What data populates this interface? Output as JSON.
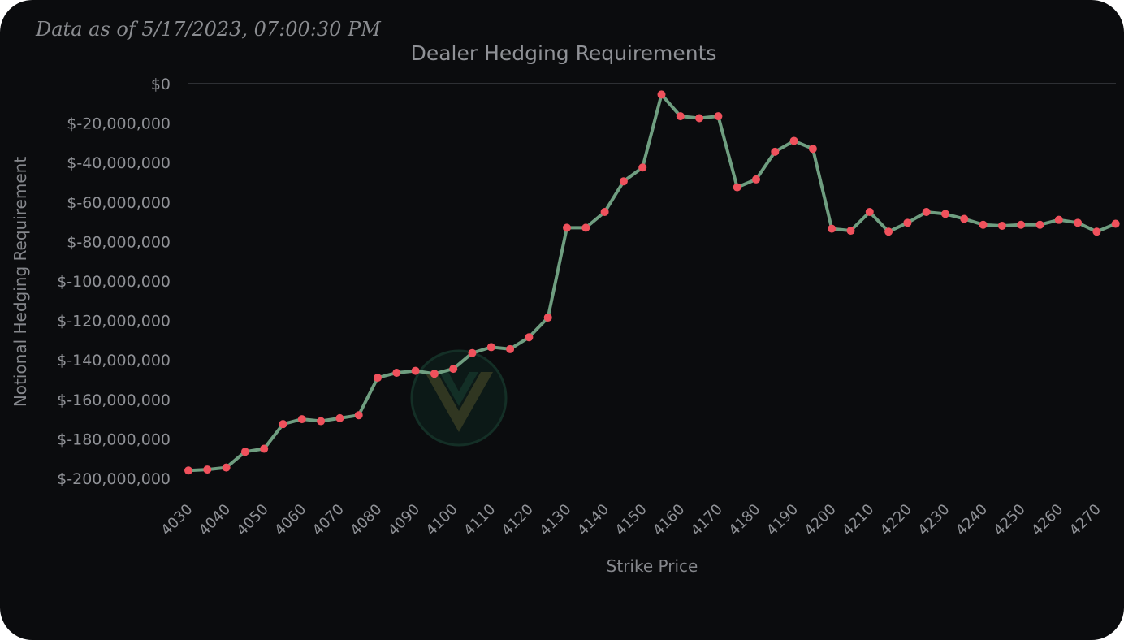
{
  "header": {
    "timestamp": "Data as of 5/17/2023, 07:00:30 PM"
  },
  "colors": {
    "background": "#0b0c0e",
    "line": "#6f9e80",
    "point": "#f0515c",
    "text": "#8f9196",
    "axis_line": "#3a3c40"
  },
  "icons": {
    "watermark": "v-logo-watermark-icon"
  },
  "chart_data": {
    "type": "line",
    "title": "Dealer Hedging Requirements",
    "xlabel": "Strike Price",
    "ylabel": "Notional Hedging Requirement",
    "ylim": [
      -200000000,
      0
    ],
    "y_ticks": [
      0,
      -20000000,
      -40000000,
      -60000000,
      -80000000,
      -100000000,
      -120000000,
      -140000000,
      -160000000,
      -180000000,
      -200000000
    ],
    "y_tick_labels": [
      "$0",
      "$-20,000,000",
      "$-40,000,000",
      "$-60,000,000",
      "$-80,000,000",
      "$-100,000,000",
      "$-120,000,000",
      "$-140,000,000",
      "$-160,000,000",
      "$-180,000,000",
      "$-200,000,000"
    ],
    "x_tick_labels": [
      "4030",
      "4040",
      "4050",
      "4060",
      "4070",
      "4080",
      "4090",
      "4100",
      "4110",
      "4120",
      "4130",
      "4140",
      "4150",
      "4160",
      "4170",
      "4180",
      "4190",
      "4200",
      "4210",
      "4220",
      "4230",
      "4240",
      "4250",
      "4260",
      "4270"
    ],
    "grid": false,
    "legend": "none",
    "series": [
      {
        "x": [
          4030,
          4035,
          4040,
          4045,
          4050,
          4055,
          4060,
          4065,
          4070,
          4075,
          4080,
          4085,
          4090,
          4095,
          4100,
          4105,
          4110,
          4115,
          4120,
          4125,
          4130,
          4135,
          4140,
          4145,
          4150,
          4155,
          4160,
          4165,
          4170,
          4175,
          4180,
          4185,
          4190,
          4195,
          4200,
          4205,
          4210,
          4215,
          4220,
          4225,
          4230,
          4235,
          4240,
          4245,
          4250,
          4255,
          4260,
          4265,
          4270,
          4275
        ],
        "values": [
          -196000000,
          -195500000,
          -194500000,
          -186500000,
          -185000000,
          -172500000,
          -170000000,
          -171000000,
          -169500000,
          -168000000,
          -149000000,
          -146500000,
          -145500000,
          -147000000,
          -144500000,
          -136500000,
          -133500000,
          -134500000,
          -128500000,
          -118500000,
          -73000000,
          -73000000,
          -65000000,
          -49500000,
          -42500000,
          -5500000,
          -16500000,
          -17500000,
          -16500000,
          -52500000,
          -48500000,
          -34500000,
          -29000000,
          -33000000,
          -73500000,
          -74500000,
          -65000000,
          -75000000,
          -70500000,
          -65000000,
          -66000000,
          -68500000,
          -71500000,
          -72000000,
          -71500000,
          -71500000,
          -69000000,
          -70500000,
          -75000000,
          -71000000
        ]
      }
    ]
  }
}
